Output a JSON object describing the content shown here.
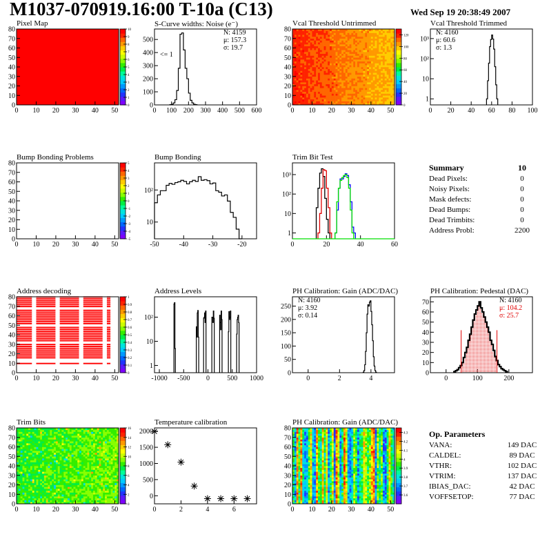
{
  "header": {
    "title": "M1037-070919.16:00 T-10a (C13)",
    "date": "Wed Sep 19 20:38:49 2007"
  },
  "palette": [
    "#7f00ff",
    "#5a1aff",
    "#2233ff",
    "#0066ff",
    "#0099ff",
    "#00ccff",
    "#00e5dd",
    "#00ff99",
    "#00ee44",
    "#33ee00",
    "#88ff00",
    "#ccff00",
    "#ffff00",
    "#ffcc00",
    "#ff9900",
    "#ff6600",
    "#ff2200",
    "#ff0000"
  ],
  "chart_data": [
    {
      "id": "pixel-map",
      "type": "heatmap",
      "title": "Pixel Map",
      "xlim": [
        0,
        52
      ],
      "ylim": [
        0,
        80
      ],
      "xticks": [
        0,
        10,
        20,
        30,
        40,
        50
      ],
      "yticks": [
        0,
        10,
        20,
        30,
        40,
        50,
        60,
        70,
        80
      ],
      "zlim": [
        0,
        10
      ],
      "zticks": [
        "0",
        "1",
        "2",
        "3",
        "4",
        "5",
        "6",
        "7",
        "8",
        "9",
        "10"
      ],
      "fill": "uniform",
      "value": 10
    },
    {
      "id": "scurve-noise",
      "type": "histogram",
      "title": "S-Curve widths: Noise (e⁻)",
      "xlim": [
        0,
        600
      ],
      "ylim": [
        0,
        580
      ],
      "xticks": [
        0,
        100,
        200,
        300,
        400,
        500,
        600
      ],
      "yticks": [
        0,
        100,
        200,
        300,
        400,
        500
      ],
      "annotation": "<= 1",
      "stats": [
        "N: 4159",
        "μ: 157.3",
        "σ: 19.7"
      ],
      "bin_width": 10,
      "bins_x": [
        90,
        100,
        110,
        120,
        130,
        140,
        150,
        160,
        170,
        180,
        190,
        200,
        210,
        220,
        230,
        240
      ],
      "values": [
        2,
        5,
        15,
        40,
        110,
        280,
        540,
        550,
        420,
        280,
        200,
        90,
        35,
        15,
        5,
        2
      ]
    },
    {
      "id": "vcal-untrimmed",
      "type": "heatmap",
      "title": "Vcal Threshold Untrimmed",
      "xlim": [
        0,
        52
      ],
      "ylim": [
        0,
        80
      ],
      "xticks": [
        0,
        10,
        20,
        30,
        40,
        50
      ],
      "yticks": [
        0,
        10,
        20,
        30,
        40,
        50,
        60,
        70,
        80
      ],
      "zlim": [
        0,
        130
      ],
      "zticks": [
        "0",
        "20",
        "40",
        "60",
        "80",
        "100",
        "120"
      ],
      "fill": "gradient-left-high",
      "value_range": [
        95,
        125
      ]
    },
    {
      "id": "vcal-trimmed",
      "type": "histogram",
      "title": "Vcal Threshold Trimmed",
      "xlim": [
        0,
        100
      ],
      "log": true,
      "ylim": [
        0.5,
        3000
      ],
      "xticks": [
        0,
        20,
        40,
        60,
        80,
        100
      ],
      "yticks": [
        "1",
        "10",
        "10²",
        "10³"
      ],
      "stats": [
        "N: 4160",
        "μ: 60.6",
        "σ:  1.3"
      ],
      "bin_width": 1,
      "bins_x": [
        55,
        56,
        57,
        58,
        59,
        60,
        61,
        62,
        63,
        64,
        65
      ],
      "values": [
        1,
        8,
        60,
        400,
        900,
        1500,
        950,
        300,
        40,
        5,
        1
      ]
    },
    {
      "id": "bump-problems",
      "type": "heatmap",
      "title": "Bump Bonding Problems",
      "xlim": [
        0,
        52
      ],
      "ylim": [
        0,
        80
      ],
      "xticks": [
        0,
        10,
        20,
        30,
        40,
        50
      ],
      "yticks": [
        0,
        10,
        20,
        30,
        40,
        50,
        60,
        70,
        80
      ],
      "zlim": [
        -5,
        5
      ],
      "zticks": [
        "-5",
        "-4",
        "-3",
        "-2",
        "-1",
        "0",
        "1",
        "2",
        "3",
        "4",
        "5"
      ],
      "fill": "empty"
    },
    {
      "id": "bump-bonding",
      "type": "histogram",
      "title": "Bump Bonding",
      "xlim": [
        -50,
        -15
      ],
      "log": true,
      "ylim": [
        3,
        700
      ],
      "xticks": [
        -50,
        -40,
        -30,
        -20
      ],
      "yticks": [
        "10",
        "10²"
      ],
      "bin_width": 1,
      "bins_x": [
        -50,
        -49,
        -48,
        -47,
        -46,
        -45,
        -44,
        -43,
        -42,
        -41,
        -40,
        -39,
        -38,
        -37,
        -36,
        -35,
        -34,
        -33,
        -32,
        -31,
        -30,
        -29,
        -28,
        -27,
        -26,
        -25,
        -24,
        -23,
        -22,
        -21
      ],
      "values": [
        40,
        70,
        95,
        95,
        140,
        160,
        150,
        170,
        180,
        200,
        185,
        155,
        180,
        200,
        185,
        260,
        200,
        210,
        195,
        155,
        165,
        95,
        85,
        65,
        70,
        45,
        20,
        14,
        6,
        3
      ]
    },
    {
      "id": "trim-bit-test",
      "type": "histogram",
      "title": "Trim Bit Test",
      "xlim": [
        0,
        60
      ],
      "log": true,
      "ylim": [
        0.5,
        4000
      ],
      "xticks": [
        0,
        20,
        40,
        60
      ],
      "yticks": [
        "1",
        "10",
        "10²",
        "10³"
      ],
      "bin_width": 1,
      "series": [
        {
          "name": "trim-black",
          "color": "#000000",
          "bins_x": [
            14,
            15,
            16,
            17,
            18,
            19,
            20,
            21
          ],
          "values": [
            20,
            200,
            1200,
            2000,
            800,
            60,
            5,
            1
          ]
        },
        {
          "name": "trim-red",
          "color": "#e00000",
          "bins_x": [
            15,
            16,
            17,
            18,
            19,
            20,
            21,
            22
          ],
          "values": [
            1,
            10,
            200,
            1800,
            1600,
            200,
            20,
            1
          ]
        },
        {
          "name": "trim-blue",
          "color": "#0000ff",
          "bins_x": [
            25,
            26,
            27,
            28,
            29,
            30,
            31,
            32,
            33,
            34,
            35,
            36
          ],
          "values": [
            1,
            15,
            200,
            600,
            600,
            800,
            1100,
            900,
            300,
            40,
            2,
            1
          ]
        },
        {
          "name": "trim-green",
          "color": "#00e000",
          "bins_x": [
            25,
            26,
            27,
            28,
            29,
            30,
            31,
            32,
            33,
            34,
            35
          ],
          "values": [
            1,
            40,
            200,
            500,
            700,
            900,
            1000,
            700,
            200,
            15,
            1
          ]
        }
      ]
    },
    {
      "id": "address-decoding",
      "type": "heatmap",
      "title": "Address decoding",
      "xlim": [
        0,
        52
      ],
      "ylim": [
        0,
        80
      ],
      "xticks": [
        0,
        10,
        20,
        30,
        40,
        50
      ],
      "yticks": [
        0,
        10,
        20,
        30,
        40,
        50,
        60,
        70,
        80
      ],
      "zlim": [
        0,
        1
      ],
      "zticks": [
        "0",
        "0.1",
        "0.2",
        "0.3",
        "0.4",
        "0.5",
        "0.6",
        "0.7",
        "0.8",
        "0.9",
        "1"
      ],
      "fill": "address-blocks",
      "col_blocks": [
        [
          0,
          8
        ],
        [
          10,
          20
        ],
        [
          22,
          32
        ],
        [
          34,
          44
        ],
        [
          46,
          48
        ]
      ],
      "row_blocks": [
        [
          9,
          11
        ],
        [
          15,
          31
        ],
        [
          33,
          49
        ],
        [
          51,
          67
        ],
        [
          69,
          80
        ]
      ]
    },
    {
      "id": "address-levels",
      "type": "histogram",
      "title": "Address Levels",
      "xlim": [
        -1100,
        1000
      ],
      "log": true,
      "ylim": [
        0.5,
        700
      ],
      "xticks": [
        -1000,
        -500,
        0,
        500,
        1000
      ],
      "yticks": [
        "1",
        "10",
        "10²"
      ],
      "peaks": [
        {
          "x": [
            -700,
            -690,
            -680
          ],
          "values": [
            350,
            400,
            5
          ]
        },
        {
          "x": [
            -240,
            -230,
            -220,
            -210,
            -200
          ],
          "values": [
            40,
            15,
            150,
            190,
            15
          ]
        },
        {
          "x": [
            -90,
            -80,
            -70,
            -60,
            -50
          ],
          "values": [
            90,
            100,
            150,
            60,
            180
          ]
        },
        {
          "x": [
            80,
            90,
            100,
            110,
            120
          ],
          "values": [
            100,
            100,
            60,
            180,
            90
          ]
        },
        {
          "x": [
            240,
            250,
            260,
            270,
            280
          ],
          "values": [
            120,
            60,
            30,
            180,
            80
          ]
        },
        {
          "x": [
            420,
            430,
            440,
            450,
            460
          ],
          "values": [
            25,
            170,
            80,
            100,
            180
          ]
        },
        {
          "x": [
            590,
            600,
            610,
            620,
            630
          ],
          "values": [
            20,
            80,
            100,
            120,
            60
          ]
        }
      ]
    },
    {
      "id": "ph-gain-hist",
      "type": "histogram",
      "title": "PH Calibration: Gain (ADC/DAC)",
      "xlim": [
        -1,
        5.5
      ],
      "ylim": [
        0,
        285
      ],
      "xticks": [
        0,
        2,
        4
      ],
      "yticks": [
        0,
        50,
        100,
        150,
        200,
        250
      ],
      "stats": [
        "N: 4160",
        "μ: 3.92",
        "σ: 0.14"
      ],
      "bin_width": 0.05,
      "bins_x": [
        3.5,
        3.55,
        3.6,
        3.65,
        3.7,
        3.75,
        3.8,
        3.85,
        3.9,
        3.95,
        4.0,
        4.05,
        4.1,
        4.15,
        4.2,
        4.25,
        4.3
      ],
      "values": [
        2,
        8,
        30,
        80,
        150,
        220,
        255,
        250,
        265,
        270,
        230,
        180,
        120,
        60,
        25,
        8,
        2
      ]
    },
    {
      "id": "ph-pedestal-hist",
      "type": "histogram",
      "title": "PH Calibration: Pedestal (DAC)",
      "xlim": [
        -50,
        275
      ],
      "ylim": [
        0,
        75
      ],
      "xticks": [
        0,
        100,
        200
      ],
      "yticks": [
        0,
        10,
        20,
        30,
        40,
        50,
        60,
        70
      ],
      "stats": [
        "N: 4160",
        "μ: 104.2",
        "σ: 25.7"
      ],
      "stats_colors": [
        "#000000",
        "#e00000",
        "#e00000"
      ],
      "fit_range": [
        48,
        162
      ],
      "fit_color": "#e00000",
      "bin_width": 5,
      "bins_x": [
        25,
        30,
        35,
        40,
        45,
        50,
        55,
        60,
        65,
        70,
        75,
        80,
        85,
        90,
        95,
        100,
        105,
        110,
        115,
        120,
        125,
        130,
        135,
        140,
        145,
        150,
        155,
        160,
        165,
        170,
        175,
        180,
        185,
        190
      ],
      "values": [
        1,
        2,
        3,
        5,
        7,
        10,
        15,
        20,
        25,
        32,
        38,
        45,
        52,
        58,
        62,
        66,
        70,
        64,
        60,
        55,
        50,
        45,
        40,
        32,
        28,
        22,
        16,
        12,
        8,
        6,
        4,
        3,
        2,
        1
      ]
    },
    {
      "id": "trim-bits",
      "type": "heatmap",
      "title": "Trim Bits",
      "xlim": [
        0,
        52
      ],
      "ylim": [
        0,
        80
      ],
      "xticks": [
        0,
        10,
        20,
        30,
        40,
        50
      ],
      "yticks": [
        0,
        10,
        20,
        30,
        40,
        50,
        60,
        70,
        80
      ],
      "zlim": [
        0,
        16
      ],
      "zticks": [
        "0",
        "2",
        "4",
        "6",
        "8",
        "10",
        "12",
        "14",
        "16"
      ],
      "fill": "random",
      "value_range": [
        5,
        11
      ]
    },
    {
      "id": "temperature-calibration",
      "type": "scatter",
      "title": "Temperature calibration",
      "xlim": [
        0,
        7.7
      ],
      "ylim": [
        -250,
        2100
      ],
      "xticks": [
        0,
        2,
        4,
        6
      ],
      "yticks": [
        0,
        500,
        1000,
        1500,
        2000
      ],
      "x": [
        0,
        1,
        2,
        3,
        4,
        5,
        6,
        7
      ],
      "y": [
        1990,
        1580,
        1040,
        300,
        -90,
        -90,
        -90,
        -90
      ]
    },
    {
      "id": "ph-gain-map",
      "type": "heatmap",
      "title": "PH Calibration: Gain (ADC/DAC)",
      "xlim": [
        0,
        52
      ],
      "ylim": [
        0,
        80
      ],
      "xticks": [
        0,
        10,
        20,
        30,
        40,
        50
      ],
      "yticks": [
        0,
        10,
        20,
        30,
        40,
        50,
        60,
        70,
        80
      ],
      "zlim": [
        3.5,
        4.35
      ],
      "zticks": [
        "3.6",
        "3.7",
        "3.8",
        "3.9",
        "4",
        "4.1",
        "4.2",
        "4.3"
      ],
      "fill": "column-structured",
      "value_range": [
        3.6,
        4.3
      ]
    }
  ],
  "summary": {
    "title": "Summary",
    "value": "10",
    "rows": [
      {
        "label": "Dead Pixels:",
        "value": "0"
      },
      {
        "label": "Noisy Pixels:",
        "value": "0"
      },
      {
        "label": "Mask defects:",
        "value": "0"
      },
      {
        "label": "Dead Bumps:",
        "value": "0"
      },
      {
        "label": "Dead Trimbits:",
        "value": "0"
      },
      {
        "label": "Address Probl:",
        "value": "2200"
      }
    ]
  },
  "op_params": {
    "title": "Op. Parameters",
    "rows": [
      {
        "label": "VANA:",
        "value": "149 DAC"
      },
      {
        "label": "CALDEL:",
        "value": "89 DAC"
      },
      {
        "label": "VTHR:",
        "value": "102 DAC"
      },
      {
        "label": "VTRIM:",
        "value": "137 DAC"
      },
      {
        "label": "IBIAS_DAC:",
        "value": "42 DAC"
      },
      {
        "label": "VOFFSETOP:",
        "value": "77 DAC"
      }
    ]
  }
}
